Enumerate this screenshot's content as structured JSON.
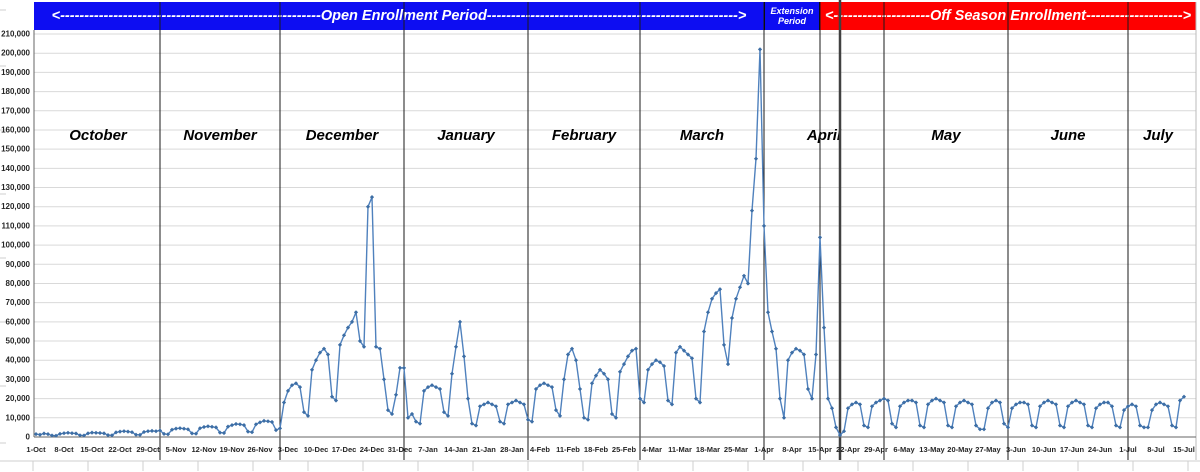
{
  "banners": {
    "open_enrollment": {
      "label": "<------------------------------------------------------Open Enrollment Period---------------------------------------------------->",
      "color": "#0d0df2"
    },
    "extension": {
      "line1": "Extension",
      "line2": "Period",
      "color": "#0d0df2"
    },
    "off_season": {
      "label": "<--------------------Off Season Enrollment-------------------->",
      "color": "#fe0000"
    }
  },
  "colors": {
    "series_line": "#4f81bd",
    "series_marker": "#3d6ea5",
    "gridline": "#d9d9d9",
    "axis": "#666666",
    "month_line": "#1a1a1a",
    "heavy_line": "#404040",
    "excel_line": "#cfcfcf"
  },
  "chart_data": {
    "type": "line",
    "title": "",
    "xlabel": "",
    "ylabel": "",
    "ylim": [
      0,
      210000
    ],
    "y_tick_step": 10000,
    "grid": "horizontal",
    "legend": "none",
    "y_tick_labels": [
      "0",
      "10,000",
      "20,000",
      "30,000",
      "40,000",
      "50,000",
      "60,000",
      "70,000",
      "80,000",
      "90,000",
      "100,000",
      "110,000",
      "120,000",
      "130,000",
      "140,000",
      "150,000",
      "160,000",
      "170,000",
      "180,000",
      "190,000",
      "200,000",
      "210,000"
    ],
    "x_tick_labels": [
      "1-Oct",
      "8-Oct",
      "15-Oct",
      "22-Oct",
      "29-Oct",
      "5-Nov",
      "12-Nov",
      "19-Nov",
      "26-Nov",
      "3-Dec",
      "10-Dec",
      "17-Dec",
      "24-Dec",
      "31-Dec",
      "7-Jan",
      "14-Jan",
      "21-Jan",
      "28-Jan",
      "4-Feb",
      "11-Feb",
      "18-Feb",
      "25-Feb",
      "4-Mar",
      "11-Mar",
      "18-Mar",
      "25-Mar",
      "1-Apr",
      "8-Apr",
      "15-Apr",
      "22-Apr",
      "29-Apr",
      "6-May",
      "13-May",
      "20-May",
      "27-May",
      "3-Jun",
      "10-Jun",
      "17-Jun",
      "24-Jun",
      "1-Jul",
      "8-Jul",
      "15-Jul"
    ],
    "months": [
      {
        "name": "October",
        "days": 31
      },
      {
        "name": "November",
        "days": 30
      },
      {
        "name": "December",
        "days": 31
      },
      {
        "name": "January",
        "days": 31
      },
      {
        "name": "February",
        "days": 28
      },
      {
        "name": "March",
        "days": 31
      },
      {
        "name": "April",
        "days": 30
      },
      {
        "name": "May",
        "days": 31
      },
      {
        "name": "June",
        "days": 30
      },
      {
        "name": "July",
        "days": 15
      }
    ],
    "annotations": {
      "open_enrollment_span_days": [
        0,
        182
      ],
      "extension_span_days": [
        182,
        196
      ],
      "off_season_span_days": [
        196,
        288
      ],
      "heavy_divider_day_index": 201
    },
    "values": [
      1500,
      1200,
      1800,
      1500,
      800,
      700,
      1600,
      2000,
      2200,
      2000,
      1800,
      900,
      800,
      1900,
      2300,
      2200,
      2100,
      1900,
      1000,
      900,
      2400,
      2800,
      3000,
      2800,
      2500,
      1200,
      1100,
      2600,
      3000,
      3200,
      3000,
      3400,
      1600,
      1400,
      3800,
      4400,
      4600,
      4300,
      4000,
      1900,
      1700,
      4600,
      5200,
      5600,
      5300,
      5000,
      2300,
      2100,
      5400,
      6200,
      6800,
      6600,
      6200,
      2800,
      2500,
      6600,
      7600,
      8400,
      8200,
      7800,
      3600,
      4500,
      18000,
      24000,
      27000,
      28000,
      26000,
      13000,
      11000,
      35000,
      40000,
      44000,
      46000,
      43000,
      21000,
      19000,
      48000,
      53000,
      57000,
      60000,
      65000,
      50000,
      47000,
      120000,
      125000,
      47000,
      46000,
      30000,
      14000,
      12000,
      22000,
      36000,
      36000,
      10000,
      12000,
      8000,
      7000,
      24000,
      26000,
      27000,
      26000,
      25000,
      13000,
      11000,
      33000,
      47000,
      60000,
      42000,
      20000,
      7000,
      6000,
      16000,
      17000,
      18000,
      17000,
      16000,
      8000,
      7000,
      17000,
      18000,
      19000,
      18000,
      17000,
      9000,
      8000,
      25000,
      27000,
      28000,
      27000,
      26000,
      14000,
      11000,
      30000,
      43000,
      46000,
      40000,
      25000,
      10000,
      9000,
      28000,
      32000,
      35000,
      33000,
      30000,
      12000,
      10000,
      34000,
      38000,
      42000,
      45000,
      46000,
      20000,
      18000,
      35000,
      38000,
      40000,
      39000,
      37000,
      19000,
      17000,
      44000,
      47000,
      45000,
      43000,
      41000,
      20000,
      18000,
      55000,
      65000,
      72000,
      75000,
      77000,
      48000,
      38000,
      62000,
      72000,
      78000,
      84000,
      80000,
      118000,
      145000,
      202000,
      110000,
      65000,
      55000,
      46000,
      20000,
      10000,
      40000,
      44000,
      46000,
      45000,
      43000,
      25000,
      20000,
      43000,
      104000,
      57000,
      20000,
      15000,
      5000,
      1000,
      3000,
      15000,
      17000,
      18000,
      17000,
      6000,
      5000,
      16000,
      18000,
      19000,
      20000,
      19000,
      7000,
      5000,
      16000,
      18000,
      19000,
      19000,
      18000,
      6000,
      5000,
      17000,
      19000,
      20000,
      19000,
      18000,
      6000,
      5000,
      16000,
      18000,
      19000,
      18000,
      17000,
      6000,
      4000,
      4000,
      15000,
      18000,
      19000,
      18000,
      7000,
      5000,
      15000,
      17000,
      18000,
      18000,
      17000,
      6000,
      5000,
      16000,
      18000,
      19000,
      18000,
      17000,
      6000,
      5000,
      16000,
      18000,
      19000,
      18000,
      17000,
      6000,
      5000,
      15000,
      17000,
      18000,
      18000,
      16000,
      6000,
      5000,
      14000,
      16000,
      17000,
      16000,
      6000,
      5000,
      5000,
      14000,
      17000,
      18000,
      17000,
      16000,
      6000,
      5000,
      19000,
      21000
    ]
  }
}
